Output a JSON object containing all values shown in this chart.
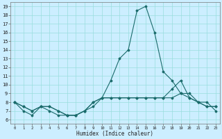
{
  "title": "",
  "xlabel": "Humidex (Indice chaleur)",
  "bg_color": "#cceeff",
  "grid_color": "#99dddd",
  "line_color": "#1a6b6b",
  "xlim": [
    -0.5,
    23.5
  ],
  "ylim": [
    5.5,
    19.5
  ],
  "x_ticks": [
    0,
    1,
    2,
    3,
    4,
    5,
    6,
    7,
    8,
    9,
    10,
    11,
    12,
    13,
    14,
    15,
    16,
    17,
    18,
    19,
    20,
    21,
    22,
    23
  ],
  "y_ticks": [
    6,
    7,
    8,
    9,
    10,
    11,
    12,
    13,
    14,
    15,
    16,
    17,
    18,
    19
  ],
  "lines": [
    {
      "x": [
        0,
        1,
        2,
        3,
        4,
        5,
        6,
        7,
        8,
        9,
        10,
        11,
        12,
        13,
        14,
        15,
        16,
        17,
        18,
        19,
        20,
        21,
        22,
        23
      ],
      "y": [
        8,
        7,
        6.5,
        7.5,
        7,
        6.5,
        6.5,
        6.5,
        7,
        7.5,
        8.5,
        10.5,
        13,
        14,
        18.5,
        19,
        16,
        11.5,
        10.5,
        9,
        9,
        8,
        8,
        7
      ]
    },
    {
      "x": [
        0,
        1,
        2,
        3,
        4,
        5,
        6,
        7,
        8,
        9,
        10,
        11,
        12,
        13,
        14,
        15,
        16,
        17,
        18,
        19,
        20,
        21,
        22,
        23
      ],
      "y": [
        8,
        7.5,
        7,
        7.5,
        7.5,
        7,
        6.5,
        6.5,
        7,
        8,
        8.5,
        8.5,
        8.5,
        8.5,
        8.5,
        8.5,
        8.5,
        8.5,
        9.5,
        10.5,
        8.5,
        8,
        7.5,
        7.5
      ]
    },
    {
      "x": [
        0,
        1,
        2,
        3,
        4,
        5,
        6,
        7,
        8,
        9,
        10,
        11,
        12,
        13,
        14,
        15,
        16,
        17,
        18,
        19,
        20,
        21,
        22,
        23
      ],
      "y": [
        8,
        7.5,
        7,
        7.5,
        7.5,
        7,
        6.5,
        6.5,
        7,
        8,
        8.5,
        8.5,
        8.5,
        8.5,
        8.5,
        8.5,
        8.5,
        8.5,
        8.5,
        9,
        8.5,
        8,
        7.5,
        7.5
      ]
    }
  ]
}
